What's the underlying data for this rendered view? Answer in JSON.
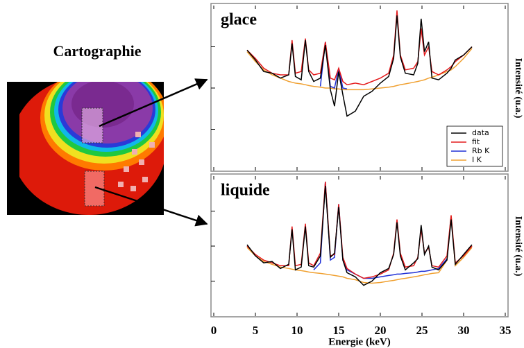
{
  "map": {
    "title": "Cartographie"
  },
  "chart_data": [
    {
      "type": "line",
      "title": "glace",
      "ylabel": "Intensité (u.a.)",
      "legend": "lower right",
      "xlim": [
        0,
        35
      ],
      "ylim": [
        0,
        10
      ],
      "x": [
        4,
        5,
        6,
        7,
        8,
        9,
        9.4,
        9.8,
        10.5,
        11,
        11.4,
        12,
        12.8,
        13.4,
        14,
        14.5,
        15,
        15.5,
        16,
        17,
        18,
        19,
        20,
        21,
        21.6,
        22,
        22.4,
        23,
        24,
        24.5,
        24.9,
        25.3,
        25.8,
        26.2,
        27,
        28,
        28.5,
        29,
        30,
        31
      ],
      "series": [
        {
          "name": "data",
          "color": "#000000",
          "values": [
            7.3,
            6.7,
            6.0,
            5.9,
            5.6,
            5.8,
            7.7,
            5.7,
            5.5,
            7.9,
            6.0,
            5.4,
            5.6,
            7.6,
            4.9,
            3.9,
            6.0,
            4.6,
            3.3,
            3.6,
            4.5,
            4.8,
            5.3,
            5.7,
            6.8,
            9.4,
            6.9,
            5.9,
            5.8,
            6.5,
            9.2,
            7.2,
            7.8,
            5.6,
            5.5,
            5.9,
            6.2,
            6.7,
            7.0,
            7.5
          ]
        },
        {
          "name": "fit",
          "color": "#e41a1c",
          "values": [
            7.3,
            6.8,
            6.2,
            5.9,
            5.8,
            5.8,
            7.9,
            5.9,
            6.0,
            8.0,
            6.1,
            5.8,
            5.9,
            7.8,
            5.6,
            5.5,
            6.2,
            5.4,
            5.2,
            5.3,
            5.2,
            5.4,
            5.6,
            5.9,
            7.0,
            9.7,
            7.0,
            6.1,
            6.2,
            6.6,
            8.6,
            7.0,
            7.5,
            6.0,
            5.8,
            6.1,
            6.3,
            6.6,
            7.0,
            7.5
          ]
        },
        {
          "name": "Rb K",
          "color": "#1f2fd6",
          "values": [
            null,
            null,
            null,
            null,
            null,
            null,
            null,
            null,
            null,
            null,
            null,
            null,
            5.1,
            7.8,
            5.1,
            5.0,
            6.2,
            5.0,
            4.95,
            null,
            null,
            null,
            null,
            null,
            null,
            null,
            null,
            null,
            null,
            null,
            null,
            null,
            null,
            null,
            null,
            null,
            null,
            null,
            null,
            null
          ]
        },
        {
          "name": "I K",
          "color": "#f0a030",
          "values": [
            7.2,
            6.6,
            6.1,
            5.8,
            5.6,
            5.4,
            5.35,
            5.3,
            5.25,
            5.2,
            5.15,
            5.1,
            5.05,
            5.0,
            5.0,
            4.95,
            4.95,
            4.9,
            4.9,
            4.9,
            4.9,
            4.95,
            5.0,
            5.05,
            5.1,
            5.15,
            5.2,
            5.25,
            5.35,
            5.4,
            5.45,
            5.5,
            5.6,
            5.65,
            5.8,
            6.0,
            6.1,
            6.3,
            6.8,
            7.4
          ]
        }
      ]
    },
    {
      "type": "line",
      "title": "liquide",
      "ylabel": "Intensité (u.a.)",
      "xlabel": "Energie (keV)",
      "xlim": [
        0,
        35
      ],
      "ylim": [
        0,
        10
      ],
      "xticks": [
        0,
        5,
        10,
        15,
        20,
        25,
        30,
        35
      ],
      "x": [
        4,
        5,
        6,
        7,
        8,
        9,
        9.4,
        9.8,
        10.5,
        11,
        11.4,
        12,
        12.8,
        13.4,
        14,
        14.5,
        15,
        15.5,
        16,
        17,
        18,
        19,
        20,
        21,
        21.6,
        22,
        22.4,
        23,
        24,
        24.5,
        24.9,
        25.3,
        25.8,
        26.2,
        27,
        28,
        28.5,
        29,
        30,
        31
      ],
      "series": [
        {
          "color": "#000000",
          "values": [
            5.1,
            4.3,
            3.8,
            3.9,
            3.4,
            3.7,
            6.2,
            3.3,
            3.5,
            6.4,
            3.6,
            3.5,
            4.3,
            9.3,
            4.2,
            4.5,
            7.8,
            4.0,
            3.1,
            2.8,
            2.2,
            2.5,
            3.1,
            3.4,
            4.4,
            6.7,
            4.3,
            3.3,
            3.8,
            4.1,
            6.5,
            4.4,
            5.0,
            3.5,
            3.3,
            4.0,
            6.9,
            3.7,
            4.4,
            5.1
          ]
        },
        {
          "color": "#e41a1c",
          "values": [
            5.0,
            4.4,
            4.0,
            3.8,
            3.6,
            3.6,
            6.4,
            3.6,
            3.7,
            6.6,
            3.8,
            3.6,
            4.5,
            9.6,
            4.3,
            4.4,
            8.0,
            4.2,
            3.4,
            3.0,
            2.7,
            2.8,
            3.0,
            3.3,
            4.5,
            6.9,
            4.5,
            3.5,
            3.6,
            4.2,
            6.2,
            4.5,
            4.9,
            3.6,
            3.5,
            4.3,
            7.2,
            3.8,
            4.3,
            5.0
          ]
        },
        {
          "color": "#1f2fd6",
          "values": [
            null,
            null,
            null,
            null,
            null,
            null,
            null,
            null,
            null,
            null,
            null,
            3.3,
            3.8,
            9.6,
            4.0,
            4.2,
            8.0,
            4.0,
            3.3,
            3.0,
            2.7,
            2.7,
            2.8,
            2.9,
            2.95,
            3.0,
            3.0,
            3.05,
            3.1,
            3.15,
            3.2,
            3.2,
            3.25,
            3.3,
            3.4,
            4.1,
            null,
            null,
            null,
            null
          ]
        },
        {
          "color": "#f0a030",
          "values": [
            4.9,
            4.3,
            3.9,
            3.7,
            3.5,
            3.4,
            3.35,
            3.3,
            3.25,
            3.2,
            3.15,
            3.1,
            3.05,
            3.0,
            2.95,
            2.9,
            2.85,
            2.8,
            2.7,
            2.6,
            2.4,
            2.35,
            2.4,
            2.5,
            2.55,
            2.6,
            2.65,
            2.7,
            2.8,
            2.85,
            2.9,
            2.95,
            3.0,
            3.05,
            3.1,
            4.0,
            7.2,
            3.6,
            4.2,
            4.9
          ]
        }
      ]
    }
  ]
}
